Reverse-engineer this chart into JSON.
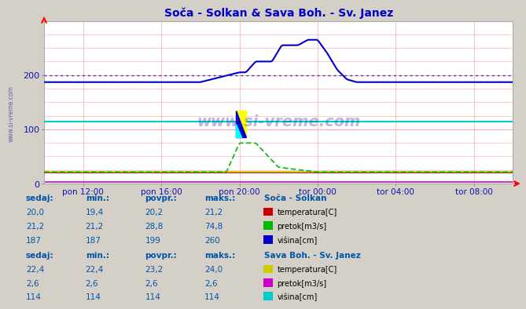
{
  "title": "Soča - Solkan & Sava Boh. - Sv. Janez",
  "title_color": "#0000cc",
  "bg_color": "#d4d0c8",
  "plot_bg_color": "#ffffff",
  "grid_color": "#ffaaaa",
  "grid_minor_color": "#ffdddd",
  "x_labels": [
    "pon 12:00",
    "pon 16:00",
    "pon 20:00",
    "tor 00:00",
    "tor 04:00",
    "tor 08:00"
  ],
  "ylim": [
    0,
    300
  ],
  "yticks": [
    0,
    100,
    200
  ],
  "watermark": "www.si-vreme.com",
  "soca_visina_color": "#0000cc",
  "soca_pretok_color": "#00bb00",
  "soca_temp_color": "#cc0000",
  "sava_visina_color": "#00cccc",
  "sava_pretok_color": "#cc00cc",
  "sava_temp_color": "#cccc00",
  "table_header_color": "#0055aa",
  "table_value_color": "#0055aa",
  "table_label_color": "#0055aa",
  "soca_sedaj": [
    20.0,
    21.2,
    187
  ],
  "soca_min": [
    19.4,
    21.2,
    187
  ],
  "soca_povpr": [
    20.2,
    28.8,
    199
  ],
  "soca_maks": [
    21.2,
    74.8,
    260
  ],
  "sava_sedaj": [
    22.4,
    2.6,
    114
  ],
  "sava_min": [
    22.4,
    2.6,
    114
  ],
  "sava_povpr": [
    23.2,
    2.6,
    114
  ],
  "sava_maks": [
    24.0,
    2.6,
    114
  ],
  "legend_soca_temp": "temperatura[C]",
  "legend_soca_pretok": "pretok[m3/s]",
  "legend_soca_visina": "višina[cm]",
  "legend_sava_temp": "temperatura[C]",
  "legend_sava_pretok": "pretok[m3/s]",
  "legend_sava_visina": "višina[cm]",
  "label_soca": "Soča - Solkan",
  "label_sava": "Sava Boh. - Sv. Janez"
}
